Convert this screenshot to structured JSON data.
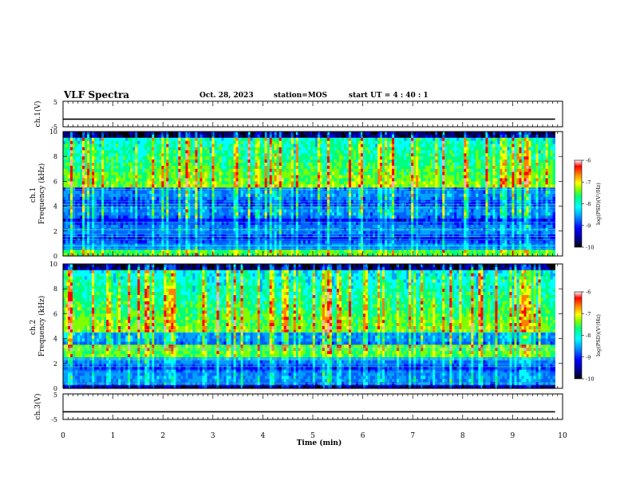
{
  "header": {
    "title": "VLF Spectra",
    "date": "Oct. 28, 2023",
    "station": "station=MOS",
    "start": "start  UT =   4 : 40 : 1"
  },
  "chart_data": [
    {
      "type": "line",
      "name": "ch1-waveform",
      "ylabel": "ch.1(V)",
      "ylim": [
        -5,
        5
      ],
      "ytick_labels": [
        "5",
        "-5"
      ],
      "level": -2,
      "xlim": [
        0,
        10
      ]
    },
    {
      "type": "heatmap",
      "name": "ch1-spectrogram",
      "ylabel": "ch.1\nFrequency (kHz)",
      "ylim": [
        0,
        10
      ],
      "yticks": [
        0,
        2,
        4,
        6,
        8,
        10
      ],
      "xlim": [
        0,
        10
      ],
      "data_extent_min": 9.85,
      "colorbar": {
        "label": "log(PSD)(V²/Hz)",
        "range": [
          -10,
          -6
        ],
        "ticks": [
          -6,
          -7,
          -8,
          -9,
          -10
        ]
      }
    },
    {
      "type": "heatmap",
      "name": "ch2-spectrogram",
      "ylabel": "ch.2\nFrequency (kHz)",
      "ylim": [
        0,
        10
      ],
      "yticks": [
        0,
        2,
        4,
        6,
        8,
        10
      ],
      "xlim": [
        0,
        10
      ],
      "data_extent_min": 9.85,
      "colorbar": {
        "label": "log(PSD)(V²/Hz)",
        "range": [
          -10,
          -6
        ],
        "ticks": [
          -6,
          -7,
          -8,
          -9,
          -10
        ]
      }
    },
    {
      "type": "line",
      "name": "ch3-waveform",
      "ylabel": "ch.3(V)",
      "ylim": [
        -5,
        5
      ],
      "ytick_labels": [
        "5",
        "-5"
      ],
      "level": -2,
      "xlim": [
        0,
        10
      ]
    }
  ],
  "xaxis": {
    "label": "Time (min)",
    "ticks": [
      0,
      1,
      2,
      3,
      4,
      5,
      6,
      7,
      8,
      9,
      10
    ]
  },
  "colors": {
    "frame": "#000000",
    "colormap": [
      "#00007f",
      "#0000ff",
      "#00a0ff",
      "#00ffff",
      "#00ff7f",
      "#7fff00",
      "#ffff00",
      "#ff7f00",
      "#ff0000",
      "#ffffff"
    ]
  }
}
